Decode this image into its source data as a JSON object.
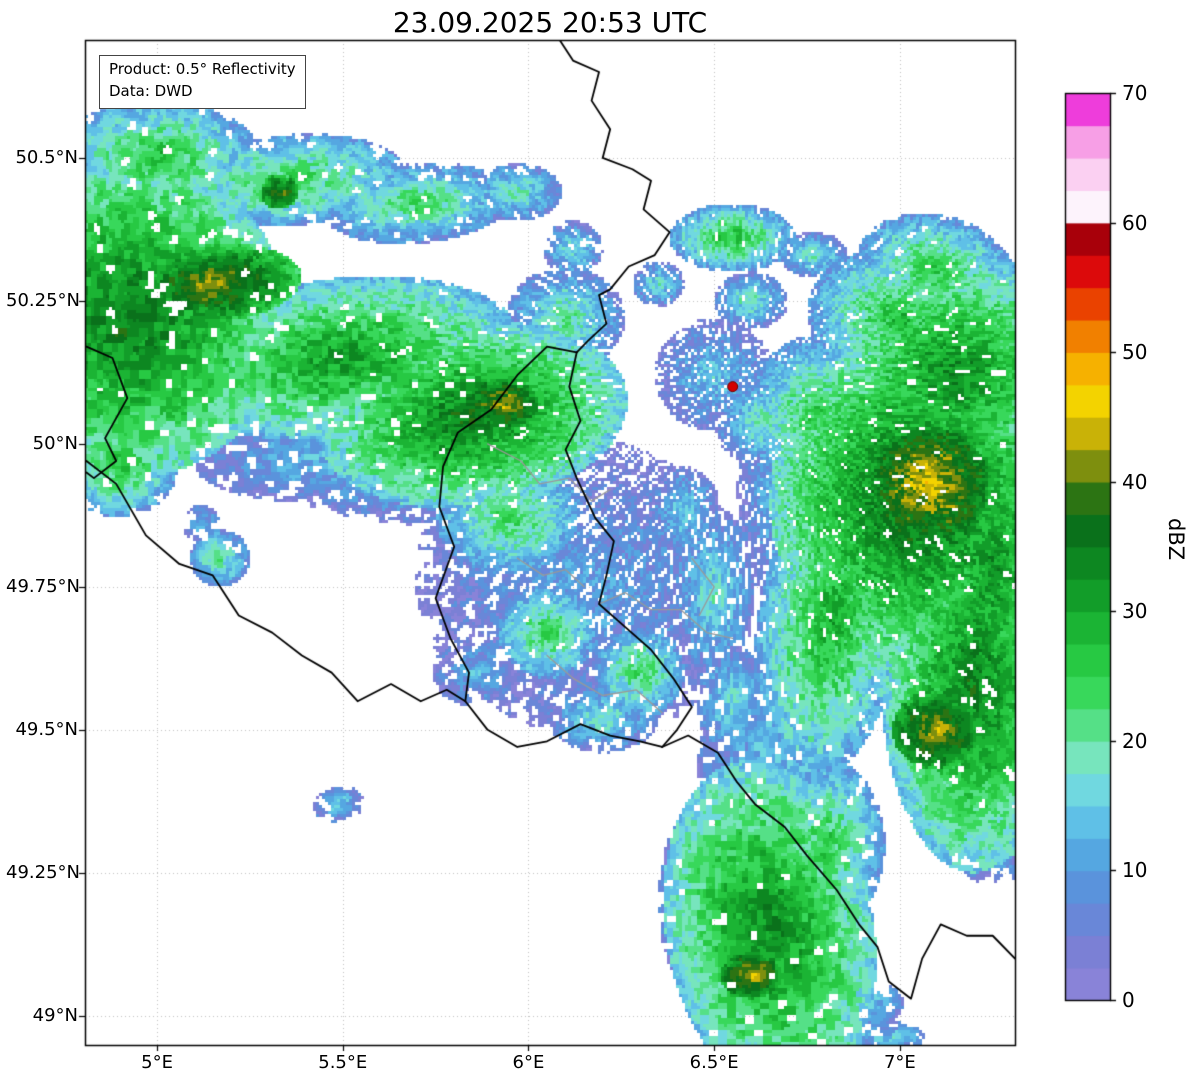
{
  "title": "23.09.2025 20:53 UTC",
  "info_box": {
    "line1": "Product: 0.5° Reflectivity",
    "line2": "Data: DWD"
  },
  "axes": {
    "lon_min": 4.806,
    "lon_max": 7.31,
    "lat_min": 48.949,
    "lat_max": 50.706,
    "x_ticks": [
      {
        "value": 5.0,
        "label": "5°E"
      },
      {
        "value": 5.5,
        "label": "5.5°E"
      },
      {
        "value": 6.0,
        "label": "6°E"
      },
      {
        "value": 6.5,
        "label": "6.5°E"
      },
      {
        "value": 7.0,
        "label": "7°E"
      }
    ],
    "y_ticks": [
      {
        "value": 49.0,
        "label": "49°N"
      },
      {
        "value": 49.25,
        "label": "49.25°N"
      },
      {
        "value": 49.5,
        "label": "49.5°N"
      },
      {
        "value": 49.75,
        "label": "49.75°N"
      },
      {
        "value": 50.0,
        "label": "50°N"
      },
      {
        "value": 50.25,
        "label": "50.25°N"
      },
      {
        "value": 50.5,
        "label": "50.5°N"
      }
    ]
  },
  "colorbar": {
    "label": "dBZ",
    "min": 0,
    "max": 70,
    "ticks": [
      0,
      10,
      20,
      30,
      40,
      50,
      60,
      70
    ],
    "step": 2.5,
    "colors": [
      "#8983d8",
      "#7b80d5",
      "#6987d8",
      "#5a93dc",
      "#55a7e1",
      "#5fc0e7",
      "#70d8e0",
      "#77e5bd",
      "#55e087",
      "#38d85b",
      "#27c943",
      "#1bb434",
      "#129d29",
      "#0d8721",
      "#0a711b",
      "#2c7413",
      "#7e8f0e",
      "#c9b207",
      "#f3d300",
      "#f6b100",
      "#f18000",
      "#ea4200",
      "#dc0a0b",
      "#a8000a",
      "#fdf3fc",
      "#fbd0f2",
      "#f79fe6",
      "#ee3ddb"
    ]
  },
  "styles": {
    "border_national": "#000000",
    "border_regional": "#999999",
    "grid": "#c0c0c0",
    "marker": "#d40000",
    "marker_edge": "#700000",
    "frame": "#000000"
  },
  "radar_site": {
    "lon": 6.55,
    "lat": 50.1
  },
  "echoes": [
    [
      5.0,
      50.5,
      0.28,
      0.1,
      0,
      8,
      28
    ],
    [
      4.88,
      50.55,
      0.06,
      0.04,
      0,
      4,
      16
    ],
    [
      5.35,
      50.46,
      0.32,
      0.08,
      -5,
      8,
      26
    ],
    [
      5.33,
      50.44,
      0.05,
      0.03,
      0,
      28,
      40
    ],
    [
      5.7,
      50.42,
      0.26,
      0.07,
      -5,
      6,
      24
    ],
    [
      5.97,
      50.44,
      0.12,
      0.05,
      0,
      5,
      20
    ],
    [
      6.12,
      50.34,
      0.08,
      0.05,
      0,
      4,
      18
    ],
    [
      4.93,
      50.22,
      0.42,
      0.28,
      0,
      16,
      36
    ],
    [
      5.15,
      50.28,
      0.24,
      0.07,
      -5,
      24,
      43
    ],
    [
      5.5,
      50.15,
      0.48,
      0.14,
      -7,
      12,
      32
    ],
    [
      5.85,
      50.05,
      0.42,
      0.16,
      -8,
      14,
      36
    ],
    [
      5.93,
      50.07,
      0.1,
      0.045,
      0,
      30,
      43
    ],
    [
      5.6,
      49.99,
      0.5,
      0.09,
      -5,
      3,
      16
    ],
    [
      6.1,
      50.22,
      0.16,
      0.09,
      0,
      4,
      22
    ],
    [
      4.9,
      49.97,
      0.16,
      0.1,
      0,
      8,
      28
    ],
    [
      5.65,
      49.93,
      0.35,
      0.07,
      5,
      2,
      13
    ],
    [
      6.55,
      50.36,
      0.17,
      0.06,
      0,
      8,
      28
    ],
    [
      6.77,
      50.33,
      0.09,
      0.04,
      0,
      4,
      20
    ],
    [
      6.35,
      50.28,
      0.07,
      0.04,
      0,
      4,
      18
    ],
    [
      6.6,
      50.25,
      0.1,
      0.05,
      0,
      4,
      20
    ],
    [
      6.5,
      50.12,
      0.16,
      0.1,
      0,
      2,
      15
    ],
    [
      6.63,
      50.04,
      0.13,
      0.08,
      0,
      4,
      20
    ],
    [
      7.1,
      50.3,
      0.22,
      0.1,
      15,
      8,
      26
    ],
    [
      7.0,
      50.22,
      0.25,
      0.12,
      10,
      8,
      28
    ],
    [
      7.15,
      50.12,
      0.35,
      0.22,
      15,
      12,
      34
    ],
    [
      7.05,
      49.9,
      0.4,
      0.3,
      0,
      16,
      38
    ],
    [
      7.08,
      49.93,
      0.16,
      0.1,
      0,
      32,
      45
    ],
    [
      7.25,
      49.78,
      0.2,
      0.3,
      0,
      14,
      33
    ],
    [
      7.2,
      49.58,
      0.25,
      0.33,
      0,
      14,
      35
    ],
    [
      7.1,
      49.5,
      0.12,
      0.07,
      0,
      28,
      43
    ],
    [
      6.82,
      49.7,
      0.2,
      0.3,
      10,
      9,
      30
    ],
    [
      6.78,
      50.05,
      0.2,
      0.14,
      0,
      7,
      26
    ],
    [
      6.68,
      49.9,
      0.12,
      0.18,
      0,
      2,
      14
    ],
    [
      6.65,
      49.45,
      0.2,
      0.18,
      0,
      3,
      14
    ],
    [
      6.15,
      49.75,
      0.46,
      0.26,
      15,
      1,
      11
    ],
    [
      5.95,
      49.87,
      0.2,
      0.1,
      0,
      8,
      24
    ],
    [
      6.05,
      49.67,
      0.13,
      0.08,
      0,
      9,
      25
    ],
    [
      6.3,
      49.6,
      0.12,
      0.08,
      0,
      8,
      24
    ],
    [
      6.5,
      49.74,
      0.11,
      0.15,
      0,
      4,
      18
    ],
    [
      6.55,
      49.55,
      0.1,
      0.1,
      0,
      4,
      17
    ],
    [
      5.86,
      49.6,
      0.12,
      0.06,
      0,
      2,
      13
    ],
    [
      6.2,
      49.52,
      0.15,
      0.06,
      0,
      4,
      18
    ],
    [
      6.42,
      49.88,
      0.1,
      0.08,
      0,
      3,
      16
    ],
    [
      6.65,
      49.15,
      0.28,
      0.3,
      -10,
      14,
      34
    ],
    [
      6.6,
      49.07,
      0.085,
      0.04,
      0,
      30,
      44
    ],
    [
      6.8,
      49.3,
      0.16,
      0.15,
      0,
      8,
      26
    ],
    [
      6.45,
      49.2,
      0.1,
      0.16,
      0,
      4,
      18
    ],
    [
      6.88,
      49.02,
      0.13,
      0.05,
      0,
      4,
      18
    ],
    [
      7.25,
      49.28,
      0.1,
      0.05,
      0,
      2,
      13
    ],
    [
      6.97,
      48.96,
      0.1,
      0.03,
      0,
      5,
      16
    ],
    [
      5.17,
      49.8,
      0.08,
      0.05,
      0,
      7,
      21
    ],
    [
      5.12,
      49.86,
      0.05,
      0.035,
      0,
      4,
      14
    ],
    [
      5.49,
      49.37,
      0.07,
      0.03,
      -10,
      4,
      16
    ]
  ],
  "borders": {
    "national": [
      [
        [
          6.08,
          50.71
        ],
        [
          6.12,
          50.67
        ],
        [
          6.19,
          50.65
        ],
        [
          6.17,
          50.6
        ],
        [
          6.22,
          50.55
        ],
        [
          6.2,
          50.5
        ],
        [
          6.28,
          50.48
        ],
        [
          6.33,
          50.46
        ],
        [
          6.31,
          50.41
        ],
        [
          6.38,
          50.37
        ],
        [
          6.34,
          50.33
        ],
        [
          6.27,
          50.31
        ],
        [
          6.22,
          50.27
        ],
        [
          6.19,
          50.26
        ],
        [
          6.21,
          50.21
        ],
        [
          6.16,
          50.18
        ],
        [
          6.13,
          50.16
        ]
      ],
      [
        [
          6.13,
          50.16
        ],
        [
          6.05,
          50.17
        ],
        [
          5.97,
          50.12
        ],
        [
          5.9,
          50.06
        ],
        [
          5.81,
          50.02
        ],
        [
          5.77,
          49.96
        ],
        [
          5.76,
          49.89
        ],
        [
          5.8,
          49.82
        ],
        [
          5.75,
          49.73
        ],
        [
          5.79,
          49.66
        ],
        [
          5.84,
          49.6
        ],
        [
          5.83,
          49.55
        ]
      ],
      [
        [
          6.13,
          50.16
        ],
        [
          6.11,
          50.1
        ],
        [
          6.14,
          50.04
        ],
        [
          6.1,
          49.99
        ],
        [
          6.13,
          49.94
        ],
        [
          6.18,
          49.87
        ],
        [
          6.23,
          49.83
        ],
        [
          6.21,
          49.77
        ],
        [
          6.19,
          49.72
        ],
        [
          6.26,
          49.68
        ],
        [
          6.33,
          49.64
        ],
        [
          6.39,
          49.59
        ],
        [
          6.44,
          49.54
        ],
        [
          6.4,
          49.5
        ],
        [
          6.36,
          49.47
        ]
      ],
      [
        [
          4.81,
          49.97
        ],
        [
          4.89,
          49.93
        ],
        [
          4.97,
          49.84
        ],
        [
          5.06,
          49.79
        ],
        [
          5.15,
          49.77
        ],
        [
          5.22,
          49.7
        ],
        [
          5.31,
          49.67
        ],
        [
          5.39,
          49.63
        ],
        [
          5.47,
          49.6
        ],
        [
          5.54,
          49.55
        ],
        [
          5.63,
          49.58
        ],
        [
          5.71,
          49.55
        ],
        [
          5.78,
          49.57
        ],
        [
          5.83,
          49.55
        ]
      ],
      [
        [
          5.83,
          49.55
        ],
        [
          5.89,
          49.5
        ],
        [
          5.97,
          49.47
        ],
        [
          6.05,
          49.48
        ],
        [
          6.14,
          49.51
        ],
        [
          6.22,
          49.49
        ],
        [
          6.3,
          49.48
        ],
        [
          6.36,
          49.47
        ]
      ],
      [
        [
          6.36,
          49.47
        ],
        [
          6.43,
          49.49
        ],
        [
          6.51,
          49.46
        ],
        [
          6.56,
          49.41
        ],
        [
          6.61,
          49.37
        ],
        [
          6.69,
          49.33
        ],
        [
          6.75,
          49.28
        ],
        [
          6.83,
          49.22
        ],
        [
          6.89,
          49.16
        ],
        [
          6.94,
          49.12
        ],
        [
          6.97,
          49.06
        ],
        [
          7.03,
          49.03
        ],
        [
          7.06,
          49.1
        ],
        [
          7.11,
          49.16
        ],
        [
          7.18,
          49.14
        ],
        [
          7.25,
          49.14
        ],
        [
          7.31,
          49.1
        ]
      ],
      [
        [
          4.81,
          50.17
        ],
        [
          4.88,
          50.15
        ],
        [
          4.92,
          50.08
        ],
        [
          4.86,
          50.01
        ],
        [
          4.89,
          49.97
        ],
        [
          4.83,
          49.94
        ],
        [
          4.81,
          49.95
        ]
      ]
    ],
    "regional": [
      [
        [
          5.89,
          50.0
        ],
        [
          5.98,
          49.97
        ],
        [
          6.03,
          49.93
        ],
        [
          6.11,
          49.94
        ],
        [
          6.17,
          49.9
        ],
        [
          6.22,
          49.92
        ]
      ],
      [
        [
          6.19,
          49.72
        ],
        [
          6.26,
          49.74
        ],
        [
          6.33,
          49.71
        ],
        [
          6.41,
          49.71
        ],
        [
          6.48,
          49.67
        ],
        [
          6.55,
          49.66
        ]
      ],
      [
        [
          6.05,
          49.63
        ],
        [
          6.12,
          49.59
        ],
        [
          6.2,
          49.56
        ],
        [
          6.29,
          49.57
        ],
        [
          6.36,
          49.53
        ]
      ],
      [
        [
          5.97,
          49.8
        ],
        [
          6.04,
          49.77
        ],
        [
          6.1,
          49.78
        ],
        [
          6.15,
          49.75
        ]
      ],
      [
        [
          6.44,
          49.8
        ],
        [
          6.5,
          49.75
        ],
        [
          6.46,
          49.7
        ]
      ]
    ]
  }
}
